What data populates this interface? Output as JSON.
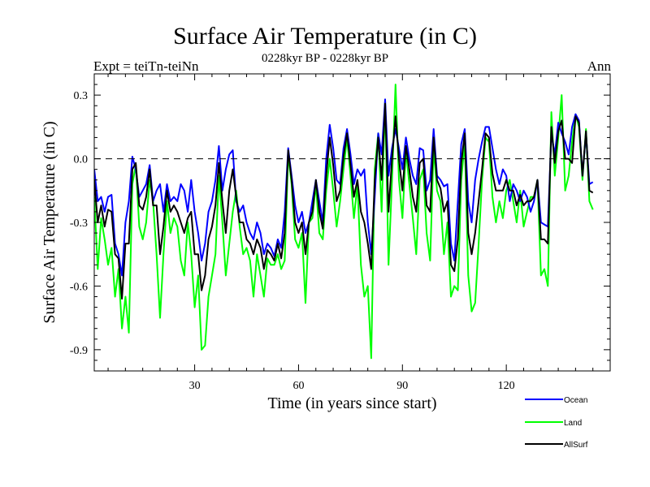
{
  "header": {
    "title": "Surface Air Temperature (in C)",
    "subtitle": "0228kyr BP - 0228kyr BP",
    "expt": "Expt = teiTn-teiNn",
    "season": "Ann"
  },
  "chart_data": {
    "type": "line",
    "title": "Surface Air Temperature (in C)",
    "xlabel": "Time (in years since start)",
    "ylabel": "Surface Air Temperature (in C)",
    "xlim": [
      1,
      150
    ],
    "ylim": [
      -1.0,
      0.4
    ],
    "xticks": [
      30,
      60,
      90,
      120
    ],
    "xtick_labels": [
      "30",
      "60",
      "90",
      "120"
    ],
    "yticks": [
      0.3,
      0.0,
      -0.3,
      -0.6,
      -0.9
    ],
    "ytick_labels": [
      "0.3",
      "0.0",
      "-0.3",
      "-0.6",
      "-0.9"
    ],
    "reference_line": 0.0,
    "series": [
      {
        "name": "Ocean",
        "color": "#0000ff",
        "values": [
          -0.05,
          -0.2,
          -0.18,
          -0.25,
          -0.18,
          -0.17,
          -0.4,
          -0.45,
          -0.55,
          -0.3,
          -0.2,
          0.01,
          -0.05,
          -0.18,
          -0.15,
          -0.12,
          -0.03,
          -0.2,
          -0.15,
          -0.12,
          -0.25,
          -0.12,
          -0.2,
          -0.18,
          -0.2,
          -0.12,
          -0.15,
          -0.25,
          -0.1,
          -0.25,
          -0.35,
          -0.48,
          -0.4,
          -0.25,
          -0.2,
          -0.1,
          0.06,
          -0.15,
          -0.05,
          0.02,
          0.04,
          -0.2,
          -0.25,
          -0.22,
          -0.3,
          -0.35,
          -0.38,
          -0.3,
          -0.35,
          -0.45,
          -0.4,
          -0.42,
          -0.46,
          -0.38,
          -0.42,
          -0.25,
          0.05,
          -0.08,
          -0.22,
          -0.3,
          -0.25,
          -0.35,
          -0.3,
          -0.2,
          -0.1,
          -0.2,
          -0.3,
          0.0,
          0.16,
          0.05,
          -0.1,
          -0.12,
          0.05,
          0.14,
          0.02,
          -0.12,
          -0.05,
          -0.08,
          -0.05,
          -0.3,
          -0.45,
          -0.18,
          0.12,
          0.02,
          0.28,
          -0.08,
          0.05,
          0.14,
          0.05,
          -0.05,
          0.1,
          0.0,
          -0.08,
          -0.12,
          0.05,
          0.04,
          -0.15,
          -0.1,
          0.14,
          -0.08,
          -0.1,
          -0.13,
          -0.12,
          -0.4,
          -0.48,
          -0.2,
          0.07,
          0.14,
          -0.2,
          -0.3,
          -0.1,
          0.0,
          0.08,
          0.15,
          0.15,
          0.05,
          -0.05,
          -0.12,
          -0.05,
          -0.08,
          -0.2,
          -0.12,
          -0.15,
          -0.2,
          -0.15,
          -0.18,
          -0.25,
          -0.2,
          -0.1,
          -0.3,
          -0.31,
          -0.32,
          0.12,
          0.02,
          0.17,
          0.12,
          0.08,
          0.02,
          0.15,
          0.21,
          0.18,
          -0.08,
          0.12,
          -0.12,
          -0.11
        ]
      },
      {
        "name": "Land",
        "color": "#00ff00",
        "values": [
          -0.18,
          -0.52,
          -0.28,
          -0.38,
          -0.5,
          -0.42,
          -0.65,
          -0.52,
          -0.8,
          -0.65,
          -0.82,
          -0.12,
          -0.03,
          -0.32,
          -0.38,
          -0.3,
          -0.1,
          -0.2,
          -0.45,
          -0.75,
          -0.45,
          -0.2,
          -0.35,
          -0.28,
          -0.32,
          -0.48,
          -0.55,
          -0.3,
          -0.45,
          -0.7,
          -0.55,
          -0.9,
          -0.88,
          -0.65,
          -0.55,
          -0.45,
          -0.08,
          -0.3,
          -0.55,
          -0.4,
          -0.25,
          -0.15,
          -0.32,
          -0.45,
          -0.42,
          -0.48,
          -0.65,
          -0.45,
          -0.55,
          -0.65,
          -0.47,
          -0.5,
          -0.5,
          -0.45,
          -0.52,
          -0.48,
          0.02,
          -0.12,
          -0.38,
          -0.42,
          -0.35,
          -0.68,
          -0.3,
          -0.28,
          -0.12,
          -0.35,
          -0.38,
          -0.15,
          0.0,
          -0.15,
          -0.32,
          -0.2,
          -0.05,
          0.1,
          -0.08,
          -0.28,
          -0.12,
          -0.5,
          -0.65,
          -0.6,
          -0.94,
          -0.05,
          0.12,
          -0.25,
          0.27,
          -0.5,
          -0.1,
          0.35,
          -0.1,
          -0.28,
          0.04,
          -0.12,
          -0.28,
          -0.45,
          -0.1,
          -0.05,
          -0.35,
          -0.48,
          0.05,
          -0.15,
          -0.2,
          -0.45,
          -0.3,
          -0.65,
          -0.6,
          -0.62,
          -0.1,
          0.08,
          -0.55,
          -0.72,
          -0.68,
          -0.4,
          -0.1,
          0.1,
          0.08,
          -0.18,
          -0.3,
          -0.2,
          -0.28,
          -0.15,
          -0.1,
          -0.2,
          -0.3,
          -0.15,
          -0.32,
          -0.25,
          -0.18,
          -0.18,
          -0.1,
          -0.55,
          -0.52,
          -0.6,
          0.22,
          -0.08,
          0.1,
          0.3,
          -0.15,
          -0.08,
          0.08,
          0.21,
          0.15,
          -0.1,
          0.14,
          -0.2,
          -0.24
        ]
      },
      {
        "name": "AllSurf",
        "color": "#000000",
        "values": [
          -0.1,
          -0.3,
          -0.22,
          -0.32,
          -0.24,
          -0.25,
          -0.45,
          -0.47,
          -0.66,
          -0.4,
          -0.4,
          -0.05,
          -0.02,
          -0.22,
          -0.24,
          -0.18,
          -0.05,
          -0.22,
          -0.22,
          -0.45,
          -0.32,
          -0.15,
          -0.25,
          -0.22,
          -0.25,
          -0.3,
          -0.35,
          -0.28,
          -0.25,
          -0.45,
          -0.45,
          -0.62,
          -0.55,
          -0.38,
          -0.32,
          -0.22,
          -0.02,
          -0.2,
          -0.35,
          -0.15,
          -0.05,
          -0.18,
          -0.3,
          -0.3,
          -0.38,
          -0.4,
          -0.45,
          -0.38,
          -0.42,
          -0.52,
          -0.43,
          -0.45,
          -0.48,
          -0.4,
          -0.47,
          -0.35,
          0.04,
          -0.1,
          -0.3,
          -0.35,
          -0.3,
          -0.45,
          -0.3,
          -0.25,
          -0.1,
          -0.25,
          -0.33,
          -0.08,
          0.1,
          -0.03,
          -0.2,
          -0.15,
          0.01,
          0.12,
          -0.03,
          -0.18,
          -0.1,
          -0.25,
          -0.3,
          -0.4,
          -0.52,
          -0.1,
          0.1,
          -0.1,
          0.26,
          -0.25,
          0.0,
          0.2,
          0.0,
          -0.15,
          0.06,
          -0.05,
          -0.18,
          -0.25,
          -0.02,
          0.0,
          -0.22,
          -0.25,
          0.1,
          -0.1,
          -0.14,
          -0.25,
          -0.2,
          -0.5,
          -0.53,
          -0.38,
          -0.02,
          0.12,
          -0.35,
          -0.45,
          -0.35,
          -0.2,
          -0.05,
          0.12,
          0.1,
          -0.07,
          -0.15,
          -0.15,
          -0.15,
          -0.1,
          -0.15,
          -0.15,
          -0.22,
          -0.17,
          -0.22,
          -0.2,
          -0.2,
          -0.18,
          -0.1,
          -0.38,
          -0.38,
          -0.4,
          0.15,
          -0.02,
          0.13,
          0.18,
          0.0,
          0.0,
          -0.02,
          0.2,
          0.17,
          -0.08,
          0.13,
          -0.15,
          -0.16
        ]
      }
    ],
    "legend_position": "bottom-right"
  }
}
